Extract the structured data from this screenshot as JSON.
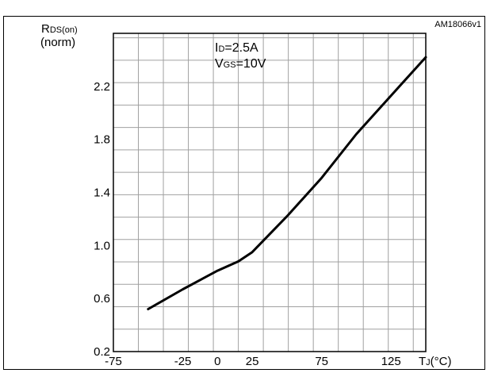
{
  "chart_data": {
    "type": "line",
    "id_tag": "AM18066v1",
    "ylabel": {
      "main": "R",
      "sub": "DS(on)",
      "second_line": "(norm)"
    },
    "xlabel": {
      "main": "T",
      "sub": "J",
      "unit": "(°C)"
    },
    "annotation": [
      {
        "main": "I",
        "sub": "D",
        "rest": "=2.5A"
      },
      {
        "main": "V",
        "sub": "GS",
        "rest": "=10V"
      }
    ],
    "xlim": [
      -75,
      150
    ],
    "ylim": [
      0.2,
      2.6
    ],
    "x_ticks": [
      -75,
      -25,
      0,
      25,
      75,
      125
    ],
    "y_ticks": [
      0.2,
      0.6,
      1.0,
      1.4,
      1.8,
      2.2
    ],
    "y_tick_labels": [
      "0.2",
      "0.6",
      "1.0",
      "1.4",
      "1.8",
      "2.2"
    ],
    "grid": true,
    "series": [
      {
        "x": [
          -50,
          -25,
          0,
          15,
          25,
          50,
          75,
          100,
          125,
          150
        ],
        "y": [
          0.52,
          0.67,
          0.81,
          0.88,
          0.95,
          1.22,
          1.51,
          1.84,
          2.13,
          2.42
        ]
      }
    ]
  }
}
